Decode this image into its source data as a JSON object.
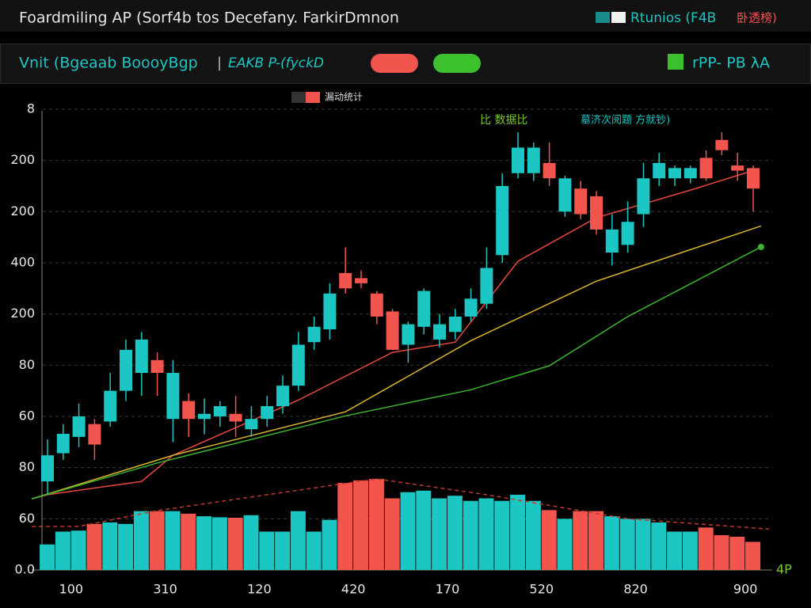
{
  "header": {
    "title": "Foardmiling AP (Sorf4b tos  Decefany. FarkirDmnon",
    "right_text": "Rtunios (F4B",
    "right_accent": "卧透榜)"
  },
  "toolbar": {
    "label": "Vnit (Bgeaab BoooyBgp",
    "label2": "EAKB P-(fyckD",
    "right": "rPP- PB λA"
  },
  "chart_data": {
    "type": "candlestick",
    "legend_label": "漏动统计",
    "annotations": [
      "比 数据比",
      "墓济次阅题 方就钞)"
    ],
    "corner_label": "4P",
    "up_color": "#1cc6c2",
    "down_color": "#f2544e",
    "grid": true,
    "ylim": [
      0,
      9.2
    ],
    "yticks": [
      {
        "value": 0,
        "label": "0.0"
      },
      {
        "value": 1,
        "label": "60"
      },
      {
        "value": 2,
        "label": "80"
      },
      {
        "value": 3,
        "label": "60"
      },
      {
        "value": 4,
        "label": "80"
      },
      {
        "value": 5,
        "label": "200"
      },
      {
        "value": 6,
        "label": "400"
      },
      {
        "value": 7,
        "label": "200"
      },
      {
        "value": 8,
        "label": "200"
      },
      {
        "value": 9,
        "label": "8"
      }
    ],
    "categories": [
      null,
      "100",
      null,
      null,
      null,
      null,
      null,
      "310",
      null,
      null,
      null,
      null,
      null,
      "120",
      null,
      null,
      null,
      null,
      null,
      "420",
      null,
      null,
      null,
      null,
      null,
      "170",
      null,
      null,
      null,
      null,
      null,
      "520",
      null,
      null,
      null,
      null,
      null,
      "820",
      null,
      null,
      null,
      null,
      null,
      null,
      "900",
      null
    ],
    "open": [
      1.73,
      2.28,
      2.6,
      2.85,
      2.9,
      3.5,
      3.85,
      4.1,
      2.95,
      3.3,
      2.95,
      3.0,
      3.05,
      2.75,
      2.95,
      3.2,
      3.6,
      4.45,
      4.7,
      5.8,
      5.7,
      5.4,
      5.05,
      4.4,
      4.75,
      4.5,
      4.65,
      4.95,
      5.2,
      6.15,
      7.75,
      7.75,
      7.95,
      7.0,
      7.45,
      7.3,
      6.2,
      6.35,
      6.95,
      7.65,
      7.65,
      7.65,
      8.05,
      8.4,
      7.9,
      7.85
    ],
    "high": [
      2.55,
      2.85,
      3.25,
      2.95,
      3.85,
      4.5,
      4.65,
      4.25,
      4.1,
      3.45,
      3.35,
      3.3,
      3.4,
      3.2,
      3.4,
      3.8,
      4.65,
      4.95,
      5.6,
      6.3,
      5.85,
      5.45,
      5.1,
      4.85,
      5.5,
      5.0,
      5.1,
      5.5,
      6.3,
      7.75,
      8.55,
      8.35,
      8.35,
      7.7,
      7.6,
      7.4,
      6.95,
      7.2,
      7.95,
      8.15,
      7.9,
      7.9,
      8.2,
      8.55,
      8.15,
      7.9
    ],
    "low": [
      1.47,
      2.15,
      2.4,
      2.15,
      2.8,
      3.3,
      3.4,
      3.4,
      2.5,
      2.6,
      2.65,
      2.8,
      2.6,
      2.6,
      2.8,
      3.05,
      3.5,
      4.3,
      4.5,
      5.4,
      5.5,
      4.8,
      4.3,
      4.05,
      4.6,
      4.35,
      4.5,
      4.85,
      5.1,
      6.0,
      7.65,
      7.6,
      7.5,
      6.9,
      6.85,
      6.55,
      5.95,
      6.2,
      6.7,
      7.5,
      7.5,
      7.55,
      7.6,
      8.1,
      7.6,
      7.0
    ],
    "close": [
      2.24,
      2.66,
      3.0,
      2.45,
      3.5,
      4.3,
      4.5,
      3.85,
      3.85,
      2.95,
      3.05,
      3.2,
      2.9,
      2.95,
      3.2,
      3.6,
      4.4,
      4.75,
      5.4,
      5.5,
      5.6,
      4.95,
      4.3,
      4.8,
      5.45,
      4.8,
      4.95,
      5.3,
      5.9,
      7.5,
      8.25,
      8.25,
      7.65,
      7.65,
      6.95,
      6.65,
      6.65,
      6.8,
      7.65,
      7.95,
      7.85,
      7.85,
      7.65,
      8.2,
      7.8,
      7.45
    ],
    "volume": [
      0.5,
      0.75,
      0.77,
      0.9,
      0.93,
      0.9,
      1.15,
      1.15,
      1.15,
      1.1,
      1.05,
      1.03,
      1.02,
      1.07,
      0.75,
      0.75,
      1.15,
      0.75,
      0.98,
      1.7,
      1.75,
      1.78,
      1.4,
      1.52,
      1.55,
      1.4,
      1.45,
      1.35,
      1.4,
      1.35,
      1.47,
      1.35,
      1.17,
      1.0,
      1.15,
      1.15,
      1.05,
      1.0,
      1.0,
      0.93,
      0.75,
      0.75,
      0.83,
      0.68,
      0.65,
      0.55
    ],
    "lines": [
      {
        "color": "#e8483f",
        "dashed": false,
        "end_marker": false,
        "x": [
          -1,
          0,
          6,
          8,
          16,
          22,
          26,
          30,
          35,
          41,
          45
        ],
        "values": [
          1.39,
          1.47,
          1.73,
          2.24,
          3.32,
          4.25,
          4.45,
          6.03,
          6.88,
          7.42,
          7.8
        ]
      },
      {
        "color": "#d8b52c",
        "dashed": false,
        "end_marker": false,
        "x": [
          -1,
          8,
          19,
          27,
          35,
          45.5
        ],
        "values": [
          1.39,
          2.24,
          3.09,
          4.48,
          5.64,
          6.72
        ]
      },
      {
        "color": "#3cb52e",
        "dashed": false,
        "end_marker": true,
        "x": [
          -1,
          7,
          19,
          27,
          32,
          37,
          45.5
        ],
        "values": [
          1.39,
          2.09,
          3.01,
          3.52,
          3.99,
          4.95,
          6.31
        ]
      },
      {
        "color": "#c0392b",
        "dashed": true,
        "end_marker": false,
        "x": [
          -1,
          2,
          7,
          14,
          21,
          28,
          37,
          46
        ],
        "values": [
          0.85,
          0.85,
          1.16,
          1.47,
          1.78,
          1.47,
          1.0,
          0.8
        ]
      }
    ]
  }
}
